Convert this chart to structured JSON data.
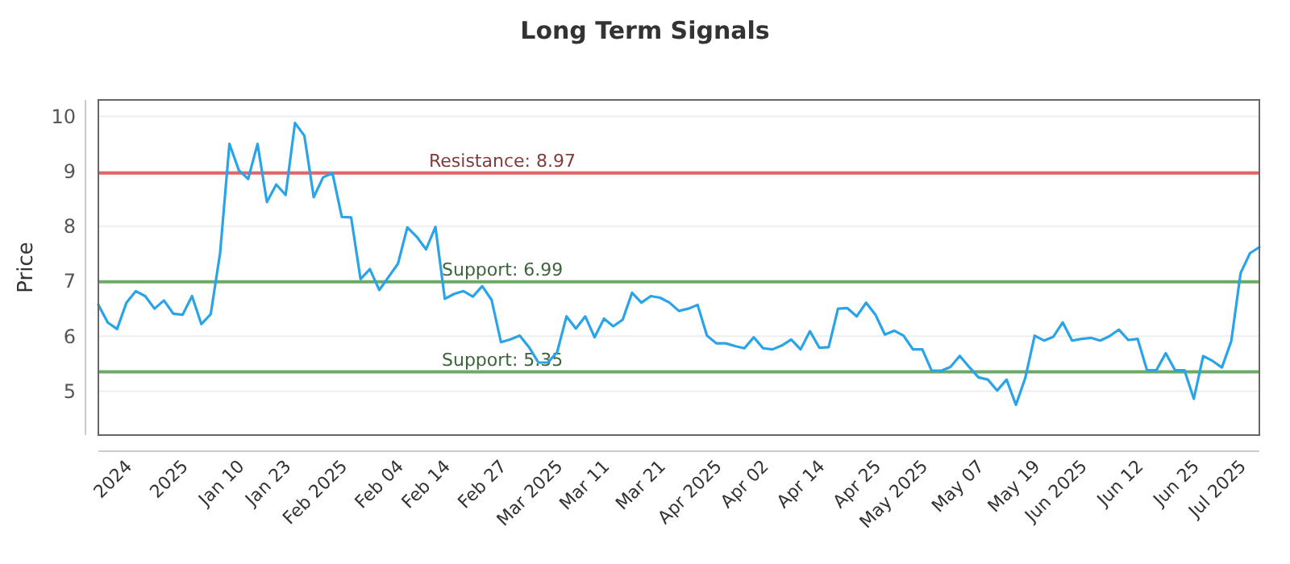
{
  "chart_data": {
    "type": "line",
    "title": "Long Term Signals",
    "ylabel": "Price",
    "categories": [
      null,
      null,
      null,
      "2024",
      null,
      null,
      null,
      null,
      null,
      "2025",
      null,
      null,
      null,
      null,
      null,
      "Jan 10",
      null,
      null,
      null,
      null,
      "Jan 23",
      null,
      null,
      null,
      null,
      null,
      "Feb 2025",
      null,
      null,
      null,
      null,
      null,
      "Feb 04",
      null,
      null,
      null,
      null,
      "Feb 14",
      null,
      null,
      null,
      null,
      null,
      "Feb 27",
      null,
      null,
      null,
      null,
      null,
      "Mar 2025",
      null,
      null,
      null,
      null,
      "Mar 11",
      null,
      null,
      null,
      null,
      null,
      "Mar 21",
      null,
      null,
      null,
      null,
      null,
      "Apr 2025",
      null,
      null,
      null,
      null,
      "Apr 02",
      null,
      null,
      null,
      null,
      null,
      "Apr 14",
      null,
      null,
      null,
      null,
      null,
      "Apr 25",
      null,
      null,
      null,
      null,
      "May 2025",
      null,
      null,
      null,
      null,
      null,
      "May 07",
      null,
      null,
      null,
      null,
      null,
      "May 19",
      null,
      null,
      null,
      null,
      "Jun 2025",
      null,
      null,
      null,
      null,
      null,
      "Jun 12",
      null,
      null,
      null,
      null,
      null,
      "Jun 25",
      null,
      null,
      null,
      null,
      "Jul 2025",
      null,
      null
    ],
    "series": [
      {
        "color": "#2aa4e8",
        "values": [
          6.57,
          6.25,
          6.13,
          6.61,
          6.82,
          6.73,
          6.5,
          6.65,
          6.41,
          6.39,
          6.73,
          6.22,
          6.4,
          7.51,
          9.5,
          9.02,
          8.86,
          9.5,
          8.44,
          8.76,
          8.57,
          9.88,
          9.65,
          8.53,
          8.89,
          8.97,
          8.17,
          8.16,
          7.04,
          7.22,
          6.84,
          7.08,
          7.32,
          7.98,
          7.81,
          7.58,
          7.99,
          6.68,
          6.77,
          6.82,
          6.72,
          6.91,
          6.66,
          5.89,
          5.94,
          6.01,
          5.8,
          5.52,
          5.52,
          5.71,
          6.36,
          6.14,
          6.36,
          5.98,
          6.32,
          6.18,
          6.3,
          6.79,
          6.61,
          6.73,
          6.7,
          6.61,
          6.46,
          6.5,
          6.57,
          6.01,
          5.87,
          5.87,
          5.82,
          5.78,
          5.98,
          5.78,
          5.76,
          5.83,
          5.94,
          5.76,
          6.09,
          5.79,
          5.8,
          6.5,
          6.51,
          6.36,
          6.61,
          6.39,
          6.03,
          6.1,
          6.01,
          5.76,
          5.76,
          5.37,
          5.37,
          5.44,
          5.64,
          5.44,
          5.25,
          5.21,
          5.01,
          5.21,
          4.75,
          5.24,
          6.01,
          5.92,
          5.99,
          6.25,
          5.92,
          5.95,
          5.97,
          5.92,
          6.0,
          6.12,
          5.93,
          5.95,
          5.38,
          5.38,
          5.69,
          5.38,
          5.38,
          4.86,
          5.64,
          5.55,
          5.43,
          5.91,
          7.15,
          7.51,
          7.62
        ]
      }
    ],
    "ylim": [
      4.2,
      10.3
    ],
    "yticks": [
      5,
      6,
      7,
      8,
      9,
      10
    ],
    "grid": "y",
    "ref_lines": [
      {
        "axis": "y",
        "value": 8.97,
        "label": "Resistance: 8.97",
        "color": "#e06666"
      },
      {
        "axis": "y",
        "value": 6.99,
        "label": "Support: 6.99",
        "color": "#6aaa64"
      },
      {
        "axis": "y",
        "value": 5.35,
        "label": "Support: 5.35",
        "color": "#6aaa64"
      }
    ]
  }
}
